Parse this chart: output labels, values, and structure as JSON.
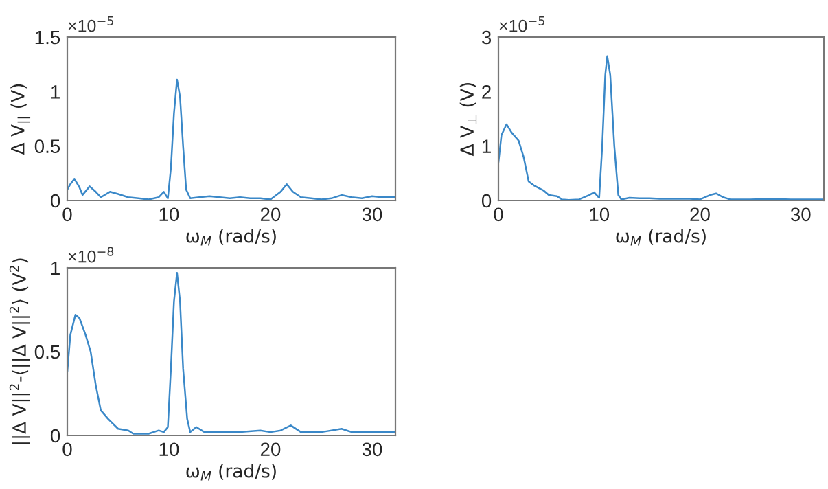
{
  "chart_data": [
    {
      "type": "line",
      "xlabel": "ω$_{M}$ (rad/s)",
      "ylabel": "Δ V$_{||}$ (V)",
      "annotations": [
        "×10$^{−5}$"
      ],
      "xlim": [
        0,
        32.3
      ],
      "xticks": [
        0,
        10,
        20,
        30
      ],
      "ylim": [
        0,
        1.5
      ],
      "yticks": [
        0,
        0.5,
        1,
        1.5
      ],
      "grid": false,
      "legend": false,
      "marker": "none",
      "line_style": "solid",
      "series": [
        {
          "color": "#3a88c8",
          "x": [
            0,
            0.3,
            0.7,
            1.2,
            1.5,
            2.2,
            2.8,
            3.3,
            4.2,
            5,
            6,
            7,
            8,
            9,
            9.5,
            9.9,
            10.2,
            10.5,
            10.8,
            11.1,
            11.4,
            11.7,
            12.1,
            13,
            14,
            15,
            16,
            17,
            18,
            19,
            20,
            21,
            21.6,
            22.2,
            23,
            24,
            25,
            26,
            27,
            28,
            29,
            30,
            31,
            32.3
          ],
          "values": [
            0.1,
            0.15,
            0.2,
            0.12,
            0.05,
            0.13,
            0.08,
            0.03,
            0.08,
            0.06,
            0.03,
            0.02,
            0.01,
            0.03,
            0.08,
            0.02,
            0.3,
            0.8,
            1.11,
            0.95,
            0.5,
            0.1,
            0.02,
            0.03,
            0.04,
            0.03,
            0.02,
            0.03,
            0.02,
            0.02,
            0.01,
            0.08,
            0.15,
            0.08,
            0.03,
            0.02,
            0.01,
            0.02,
            0.05,
            0.03,
            0.02,
            0.04,
            0.03,
            0.03
          ]
        }
      ]
    },
    {
      "type": "line",
      "xlabel": "ω$_{M}$ (rad/s)",
      "ylabel": "Δ V$_{⊥}$ (V)",
      "annotations": [
        "×10$^{−5}$"
      ],
      "xlim": [
        0,
        32.3
      ],
      "xticks": [
        0,
        10,
        20,
        30
      ],
      "ylim": [
        0,
        3
      ],
      "yticks": [
        0,
        1,
        2,
        3
      ],
      "grid": false,
      "legend": false,
      "marker": "none",
      "line_style": "solid",
      "series": [
        {
          "color": "#3a88c8",
          "x": [
            0,
            0.3,
            0.8,
            1.3,
            2,
            2.5,
            3,
            3.5,
            4.5,
            5,
            5.8,
            6.3,
            7,
            8,
            9,
            9.5,
            10,
            10.3,
            10.6,
            10.8,
            11.1,
            11.5,
            11.9,
            12.2,
            13,
            14,
            15,
            16,
            17,
            18,
            19,
            20,
            21,
            21.6,
            22.3,
            23,
            25,
            27,
            29,
            32.3
          ],
          "values": [
            0.7,
            1.2,
            1.4,
            1.25,
            1.1,
            0.8,
            0.35,
            0.28,
            0.18,
            0.1,
            0.08,
            0.02,
            0.01,
            0.02,
            0.1,
            0.15,
            0.05,
            1.0,
            2.3,
            2.65,
            2.3,
            1.0,
            0.1,
            0.02,
            0.05,
            0.04,
            0.04,
            0.03,
            0.03,
            0.03,
            0.03,
            0.02,
            0.1,
            0.13,
            0.06,
            0.02,
            0.02,
            0.03,
            0.02,
            0.02
          ]
        }
      ]
    },
    {
      "type": "line",
      "xlabel": "ω$_{M}$ (rad/s)",
      "ylabel": "||Δ V||$^{2}$-⟨||Δ V||$^{2}$⟩ (V$^{2}$)",
      "annotations": [
        "×10$^{−8}$"
      ],
      "xlim": [
        0,
        32.3
      ],
      "xticks": [
        0,
        10,
        20,
        30
      ],
      "ylim": [
        0,
        1
      ],
      "yticks": [
        0,
        0.5,
        1
      ],
      "grid": false,
      "legend": false,
      "marker": "none",
      "line_style": "solid",
      "series": [
        {
          "color": "#3a88c8",
          "x": [
            0,
            0.3,
            0.8,
            1.2,
            1.8,
            2.3,
            2.8,
            3.3,
            4,
            5,
            6,
            6.5,
            7,
            8,
            9,
            9.5,
            9.9,
            10.2,
            10.5,
            10.8,
            11.1,
            11.4,
            11.8,
            12.1,
            12.7,
            13.5,
            15,
            17,
            19,
            20,
            21,
            22,
            23,
            25,
            27,
            28,
            30,
            32.3
          ],
          "values": [
            0.38,
            0.6,
            0.72,
            0.7,
            0.6,
            0.5,
            0.3,
            0.15,
            0.1,
            0.04,
            0.03,
            0.01,
            0.01,
            0.01,
            0.03,
            0.02,
            0.05,
            0.4,
            0.8,
            0.97,
            0.8,
            0.4,
            0.1,
            0.02,
            0.05,
            0.02,
            0.02,
            0.02,
            0.03,
            0.02,
            0.03,
            0.06,
            0.02,
            0.02,
            0.04,
            0.02,
            0.02,
            0.02
          ]
        }
      ]
    }
  ]
}
